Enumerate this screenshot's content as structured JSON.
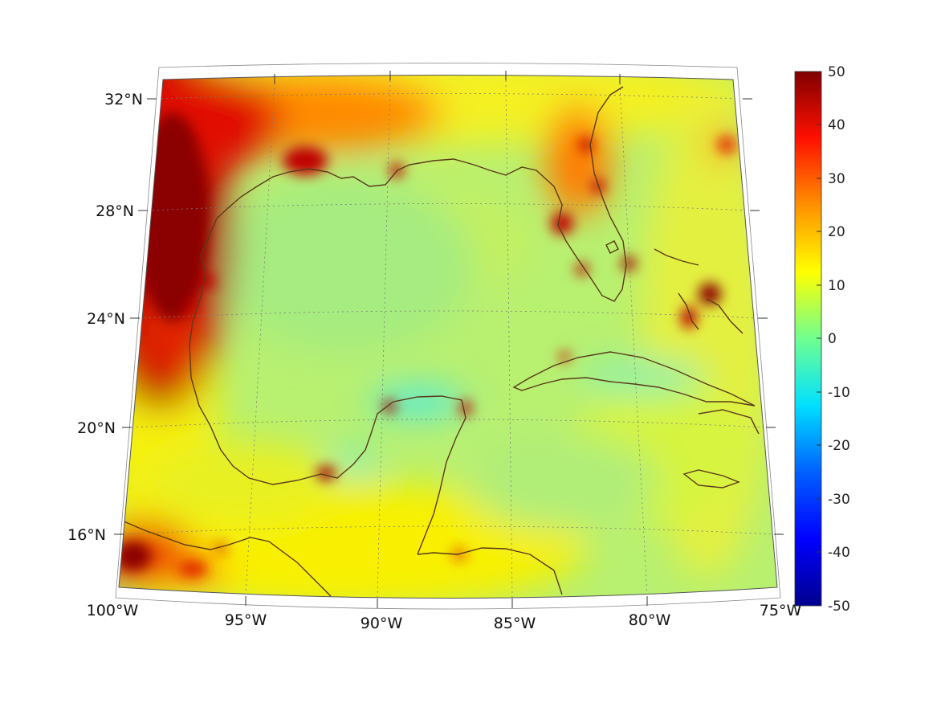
{
  "map": {
    "region": "Gulf of Mexico and Caribbean",
    "projection": "conic",
    "lon_range": [
      -100,
      -75
    ],
    "lat_range": [
      14,
      33
    ],
    "graticule": "dotted",
    "coastline_color": "#5a3a1a",
    "longitude_labels": [
      "100°W",
      "95°W",
      "90°W",
      "85°W",
      "80°W",
      "75°W"
    ],
    "latitude_labels": [
      "32°N",
      "28°N",
      "24°N",
      "20°N",
      "16°N"
    ]
  },
  "colorbar": {
    "colormap": "jet",
    "min": -50,
    "max": 50,
    "tick_labels": [
      "50",
      "40",
      "30",
      "20",
      "10",
      "0",
      "-10",
      "-20",
      "-30",
      "-40",
      "-50"
    ],
    "colors": [
      "#00008f",
      "#0000ff",
      "#0080ff",
      "#00ffff",
      "#80ff80",
      "#ffff00",
      "#ff8000",
      "#ff0000",
      "#800000"
    ]
  }
}
